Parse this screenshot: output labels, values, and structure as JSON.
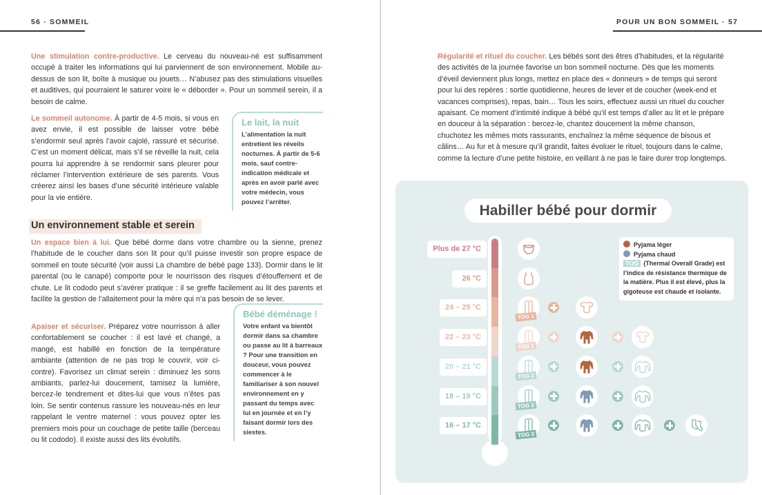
{
  "left_page": {
    "header": "56 · SOMMEIL",
    "para1": {
      "lead": "Une stimulation contre-productive.",
      "text": " Le cerveau du nouveau-né est suffisamment occupé à traiter les informations qui lui parviennent de son environnement. Mobile au-dessus de son lit, boîte à musique ou jouets… N’abusez pas des stimulations visuelles et auditives, qui pourraient le saturer voire le « déborder ». Pour un sommeil serein, il a besoin de calme."
    },
    "para2": {
      "lead": "Le sommeil autonome.",
      "text": " À partir de 4-5 mois, si vous en avez envie, il est possible de laisser votre bébé s’endormir seul après l’avoir cajolé, rassuré et sécurisé. C’est un moment délicat, mais s’il se réveille la nuit, cela pourra lui apprendre à se rendormir sans pleurer pour réclamer l’intervention extérieure de ses parents. Vous créerez ainsi les bases d’une sécurité intérieure valable pour la vie entière."
    },
    "sidebar1": {
      "title": "Le lait, la nuit",
      "text": "L’alimentation la nuit entretient les réveils nocturnes. À partir de 5-6 mois, sauf contre-indication médicale et après en avoir parlé avec votre médecin, vous pouvez l’arrêter."
    },
    "section_heading": "Un environnement stable et serein",
    "para3": {
      "lead": "Un espace bien à lui.",
      "text": " Que bébé dorme dans votre chambre ou la sienne, prenez l’habitude de le coucher dans son lit pour qu’il puisse investir son propre espace de sommeil en toute sécurité (voir aussi La chambre de bébé page 133). Dormir dans le lit parental (ou le canapé) comporte pour le nourrisson des risques d’étouffement et de chute. Le lit cododo peut s’avérer pratique : il se greffe facilement au lit des parents et facilite la gestion de l’allaitement pour la mère qui n’a pas besoin de se lever."
    },
    "para4": {
      "lead": "Apaiser et sécuriser.",
      "text": " Préparez votre nourrisson à aller confortablement se coucher : il est lavé et changé, a mangé, est habillé en fonction de la température ambiante (attention de ne pas trop le couvrir, voir ci-contre). Favorisez un climat serein : diminuez les sons ambiants, parlez-lui doucement, tamisez la lumière, bercez-le tendrement et dites-lui que vous n’êtes pas loin. Se sentir contenus rassure les nouveau-nés en leur rappelant le ventre maternel : vous pouvez opter les premiers mois pour un couchage de petite taille (berceau ou lit cododo). Il existe aussi des lits évolutifs."
    },
    "sidebar2": {
      "title": "Bébé déménage !",
      "text": "Votre enfant va bientôt dormir dans sa chambre ou passe au lit à barreaux ? Pour une transition en douceur, vous pouvez commencer à le familiariser à son nouvel environnement en y passant du temps avec lui en journée et en l’y faisant dormir lors des siestes."
    }
  },
  "right_page": {
    "header": "POUR UN BON SOMMEIL · 57",
    "para1": {
      "lead": "Régularité et rituel du coucher.",
      "text": " Les bébés sont des êtres d’habitudes, et la régularité des activités de la journée favorise un bon sommeil nocturne. Dès que les moments d’éveil deviennent plus longs, mettez en place des « donneurs » de temps qui seront pour lui des repères : sortie quotidienne, heures de lever et de coucher (week-end et vacances comprises), repas, bain… Tous les soirs, effectuez aussi un rituel du coucher apaisant. Ce moment d’intimité indique à bébé qu’il est temps d’aller au lit et le prépare en douceur à la séparation : bercez-le, chantez doucement la même chanson, chuchotez les mêmes mots rassurants, enchaînez la même séquence de bisous et câlins… Au fur et à mesure qu’il grandit, faites évoluer le rituel, toujours dans le calme, comme la lecture d’une petite histoire, en veillant à ne pas le faire durer trop longtemps."
    },
    "infographic": {
      "title": "Habiller bébé pour dormir",
      "legend": {
        "light": "Pyjama léger",
        "warm": "Pyjama chaud",
        "tog": "TOG",
        "tog_def": "(Thermal Overall Grade)",
        "tog_text": "est l’indice de résistance thermique de la matière. Plus il est élevé, plus la gigoteuse est chaude et isolante.",
        "light_color": "#b8643f",
        "warm_color": "#7f9bb5"
      },
      "rows": [
        {
          "label": "Plus de 27 °C",
          "color": "#c97d85",
          "items": [
            {
              "type": "diaper"
            }
          ]
        },
        {
          "label": "26 °C",
          "color": "#d89c8c",
          "items": [
            {
              "type": "tank-bodysuit"
            }
          ]
        },
        {
          "label": "24 – 25 °C",
          "color": "#e6b59c",
          "items": [
            {
              "type": "sleeping-bag",
              "tog": "TOG 1"
            },
            {
              "type": "short-bodysuit"
            }
          ]
        },
        {
          "label": "22 – 23 °C",
          "color": "#efd6ca",
          "items": [
            {
              "type": "sleeping-bag",
              "tog": "TOG 1"
            },
            {
              "type": "light-pyjama"
            },
            {
              "type": "short-bodysuit"
            }
          ]
        },
        {
          "label": "20 – 21 °C",
          "color": "#b9d9d7",
          "items": [
            {
              "type": "sleeping-bag",
              "tog": "TOG 2"
            },
            {
              "type": "light-pyjama"
            },
            {
              "type": "long-bodysuit"
            }
          ]
        },
        {
          "label": "18 – 19 °C",
          "color": "#9dc9bd",
          "items": [
            {
              "type": "sleeping-bag",
              "tog": "TOG 2"
            },
            {
              "type": "warm-pyjama"
            },
            {
              "type": "long-bodysuit"
            }
          ]
        },
        {
          "label": "16 – 17 °C",
          "color": "#7fb7a6",
          "items": [
            {
              "type": "sleeping-bag",
              "tog": "TOG 3"
            },
            {
              "type": "warm-pyjama"
            },
            {
              "type": "long-bodysuit"
            },
            {
              "type": "socks"
            }
          ]
        }
      ]
    }
  }
}
